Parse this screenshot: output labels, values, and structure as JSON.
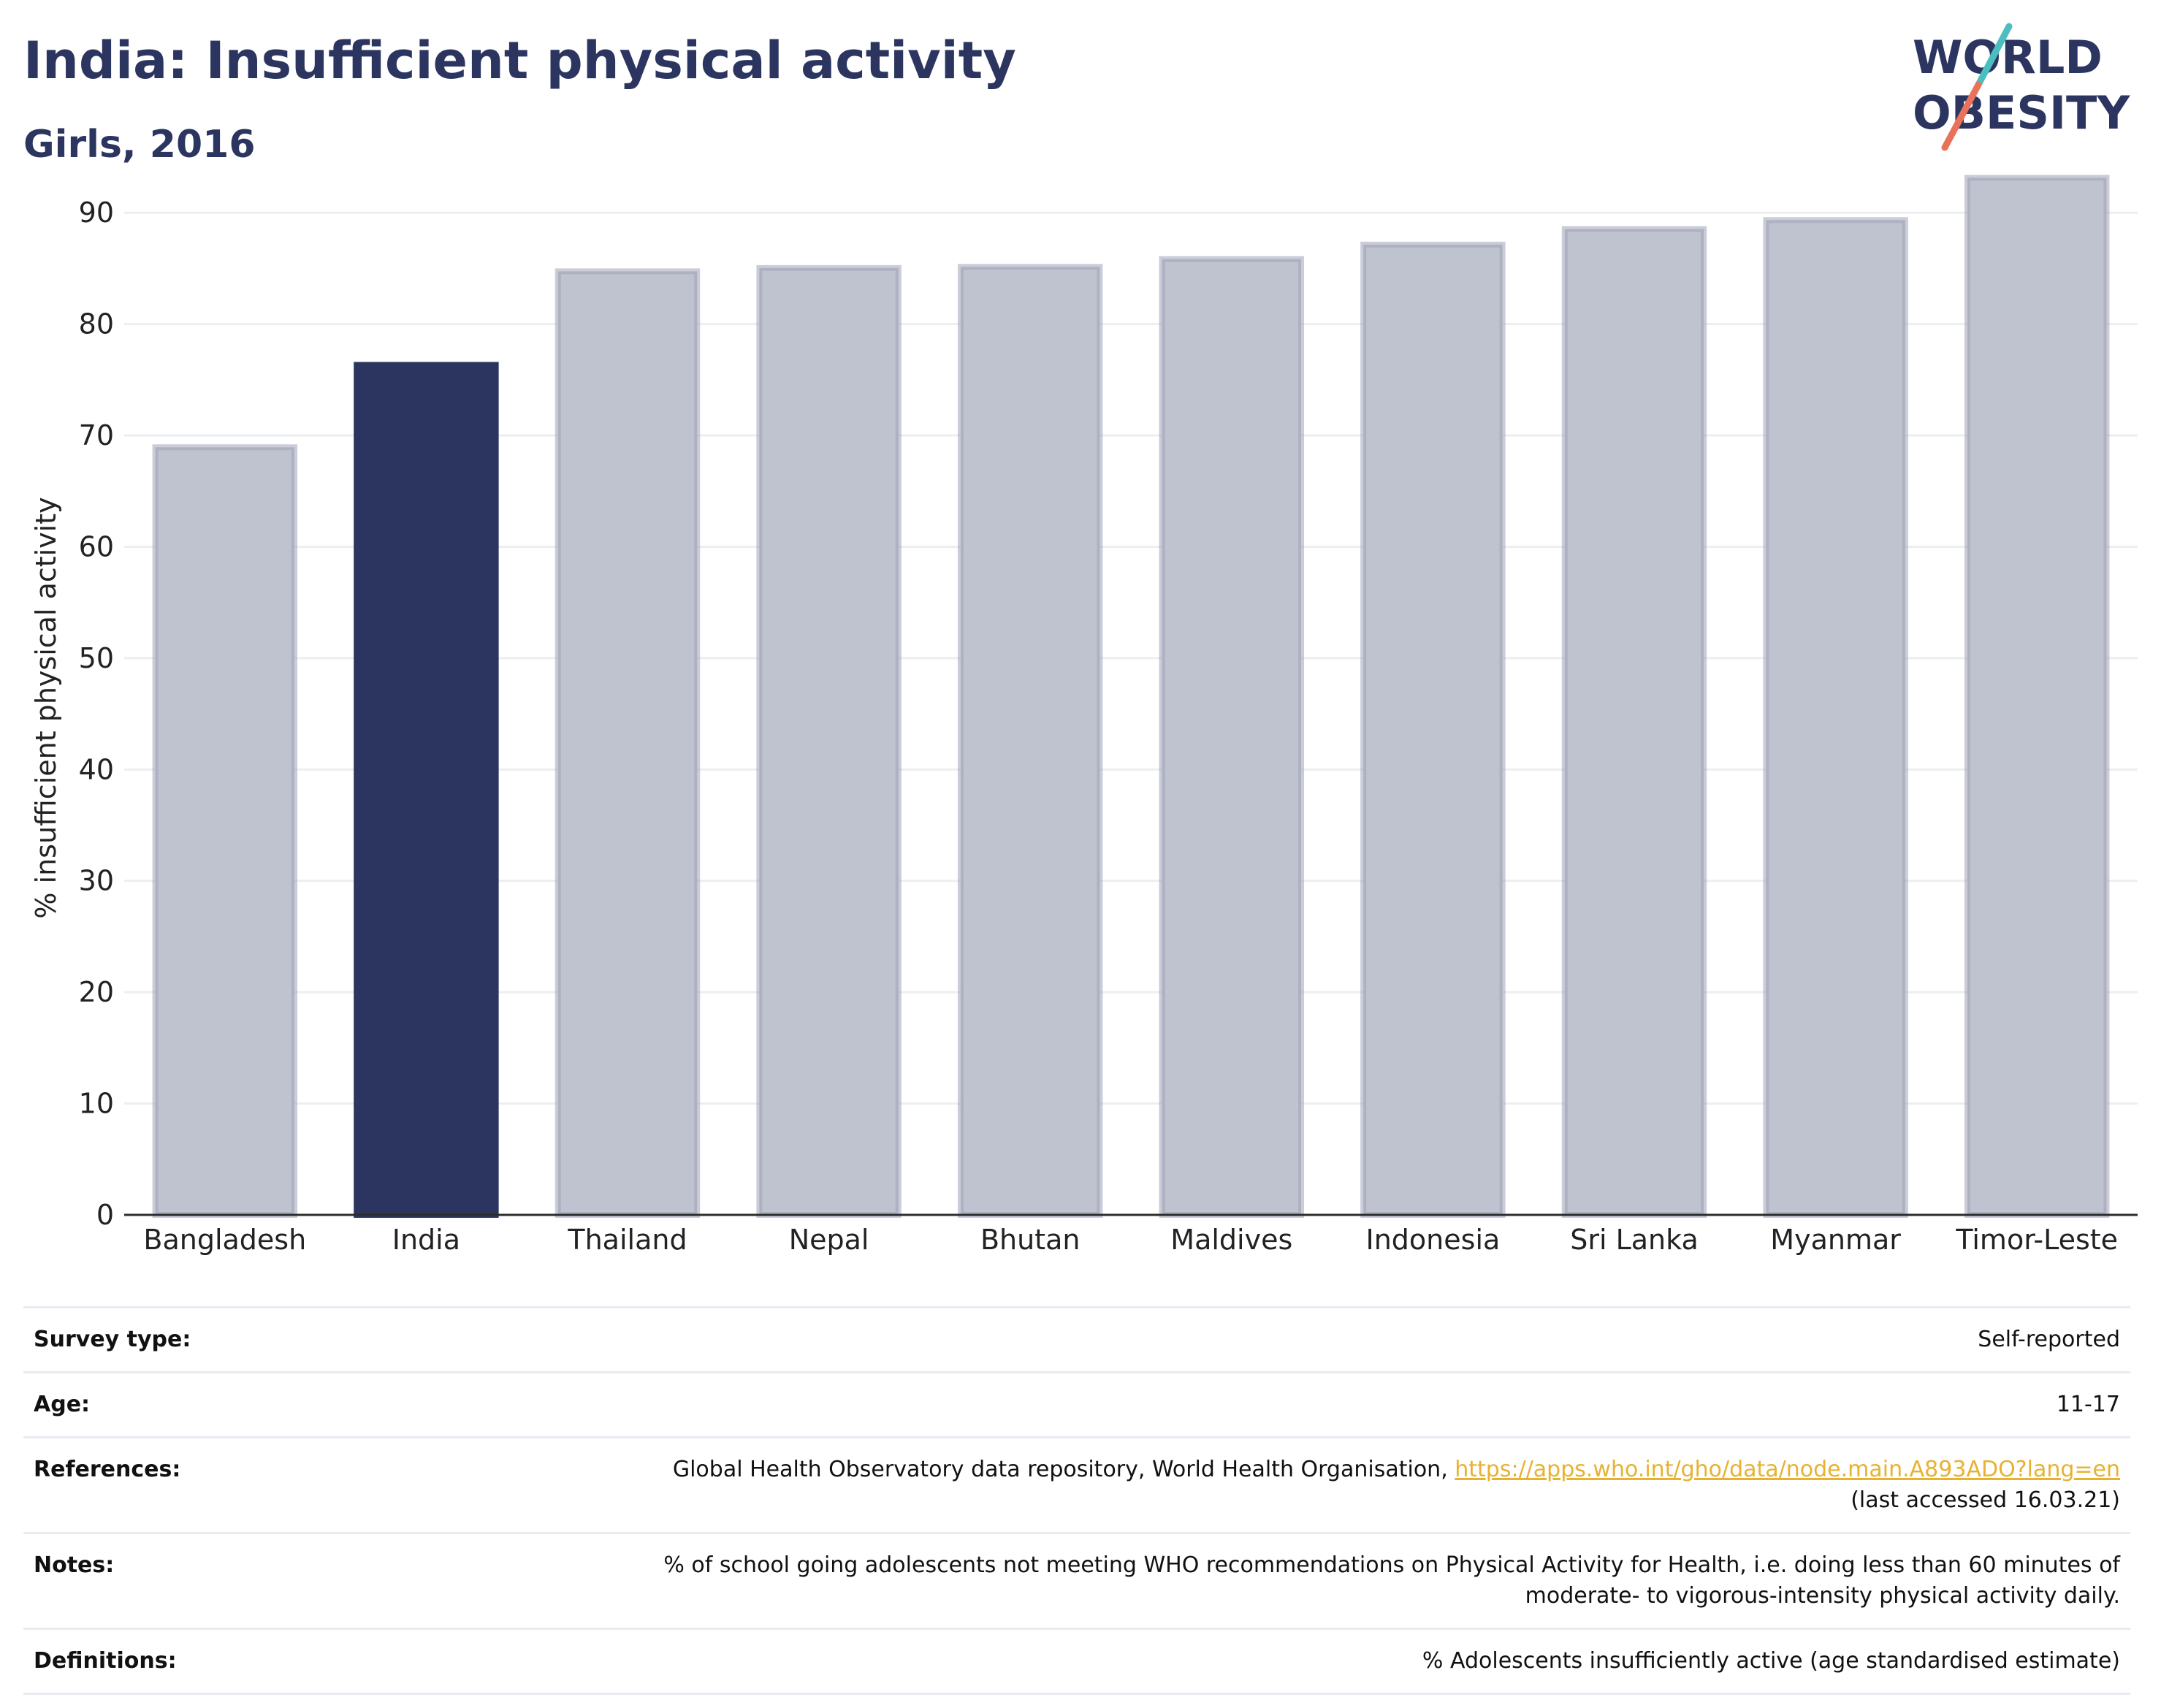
{
  "header": {
    "title": "India: Insufficient physical activity",
    "subtitle": "Girls, 2016"
  },
  "logo": {
    "line1": "WORLD",
    "line2": "OBESITY",
    "accent_colors": [
      "#4bbfbf",
      "#e8725a"
    ]
  },
  "colors": {
    "highlight": "#2b3560",
    "other": "#bfc3cf",
    "other_border": "#9ea3b8",
    "grid": "#eceef2",
    "axis": "#2d2d2d"
  },
  "chart_data": {
    "type": "bar",
    "categories": [
      "Bangladesh",
      "India",
      "Thailand",
      "Nepal",
      "Bhutan",
      "Maldives",
      "Indonesia",
      "Sri Lanka",
      "Myanmar",
      "Timor-Leste"
    ],
    "values": [
      69.2,
      76.6,
      85.0,
      85.3,
      85.4,
      86.1,
      87.4,
      88.8,
      89.6,
      93.4
    ],
    "highlight": "India",
    "xlabel": "",
    "ylabel": "% insufficient physical activity",
    "ylim": [
      0,
      95
    ],
    "yticks": [
      0,
      10,
      20,
      30,
      40,
      50,
      60,
      70,
      80,
      90
    ],
    "grid": true
  },
  "info": {
    "survey_type": {
      "label": "Survey type:",
      "value": "Self-reported"
    },
    "age": {
      "label": "Age:",
      "value": "11-17"
    },
    "references": {
      "label": "References:",
      "text": "Global Health Observatory data repository, World Health Organisation, ",
      "link": "https://apps.who.int/gho/data/node.main.A893ADO?lang=en",
      "accessed": "(last accessed 16.03.21)"
    },
    "notes": {
      "label": "Notes:",
      "line1": "% of school going adolescents not meeting WHO recommendations on Physical Activity for Health, i.e. doing less than 60 minutes of",
      "line2": "moderate- to vigorous-intensity physical activity daily."
    },
    "definitions": {
      "label": "Definitions:",
      "value": "% Adolescents insufficiently active (age standardised estimate)"
    }
  }
}
